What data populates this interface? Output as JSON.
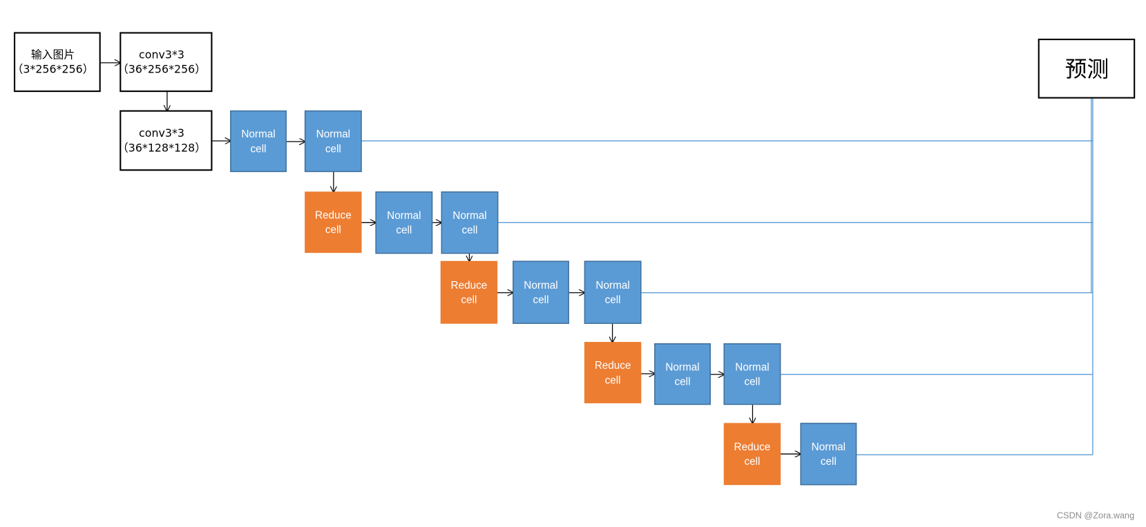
{
  "colors": {
    "normal_fill": "#5B9BD5",
    "normal_stroke": "#41719C",
    "reduce_fill": "#ED7D31",
    "connector": "#5B9BD5",
    "arrow": "#000000",
    "box_stroke": "#000000"
  },
  "nodes": [
    {
      "lines": [
        "输入图片",
        "（3*256*256）"
      ]
    },
    {
      "lines": [
        "conv3*3",
        "（36*256*256）"
      ]
    },
    {
      "lines": [
        "conv3*3",
        "（36*128*128）"
      ]
    },
    {
      "lines": [
        "Normal",
        "cell"
      ]
    },
    {
      "lines": [
        "Normal",
        "cell"
      ]
    },
    {
      "lines": [
        "Reduce",
        "cell"
      ]
    },
    {
      "lines": [
        "Normal",
        "cell"
      ]
    },
    {
      "lines": [
        "Normal",
        "cell"
      ]
    },
    {
      "lines": [
        "Reduce",
        "cell"
      ]
    },
    {
      "lines": [
        "Normal",
        "cell"
      ]
    },
    {
      "lines": [
        "Normal",
        "cell"
      ]
    },
    {
      "lines": [
        "Reduce",
        "cell"
      ]
    },
    {
      "lines": [
        "Normal",
        "cell"
      ]
    },
    {
      "lines": [
        "Normal",
        "cell"
      ]
    },
    {
      "lines": [
        "Reduce",
        "cell"
      ]
    },
    {
      "lines": [
        "Normal",
        "cell"
      ]
    }
  ],
  "output": {
    "label": "预测"
  },
  "watermark": "CSDN @Zora.wang"
}
